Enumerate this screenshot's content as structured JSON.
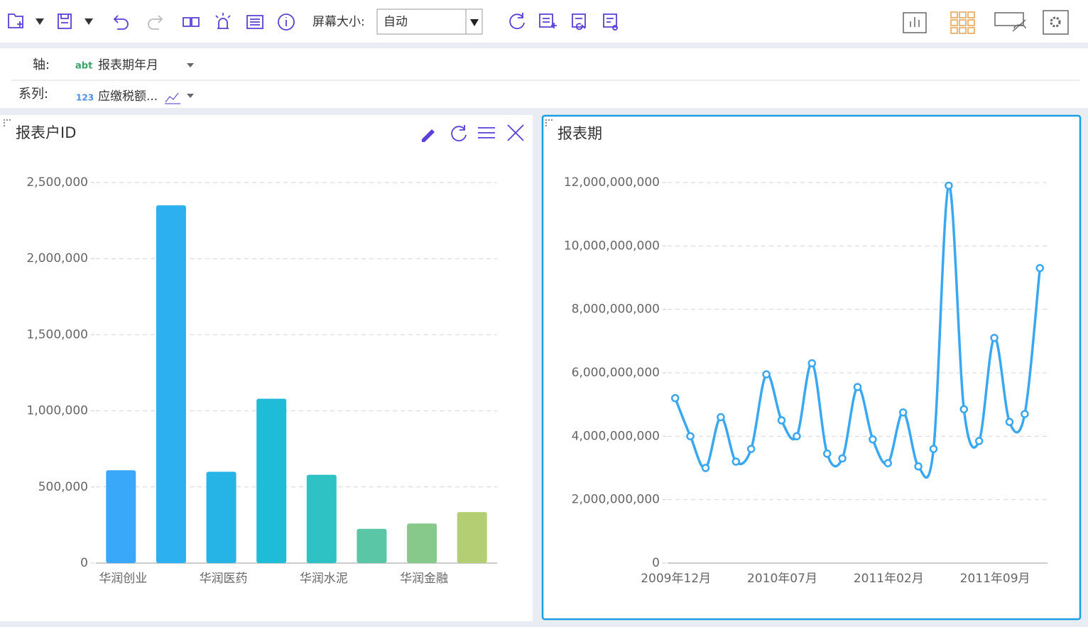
{
  "toolbar": {
    "screen_size_label": "屏幕大小:",
    "screen_size_value": "自动"
  },
  "fields": {
    "axis_label": "轴:",
    "axis_field": "报表期年月",
    "series_label": "系列:",
    "series_field": "应缴税额..."
  },
  "chart_data": [
    {
      "type": "bar",
      "title": "报表户ID",
      "categories": [
        "华润创业",
        null,
        "华润医药",
        null,
        "华润水泥",
        null,
        "华润金融",
        null
      ],
      "values": [
        610000,
        2350000,
        600000,
        1080000,
        580000,
        225000,
        260000,
        335000
      ],
      "colors": [
        "#3aa8f8",
        "#2cb0f0",
        "#26b4e6",
        "#1fbcd8",
        "#2ec2c4",
        "#5ac6a6",
        "#86c98b",
        "#b4cf73"
      ],
      "ylim": [
        0,
        2500000
      ],
      "yticks": [
        0,
        {
          "value": 500000,
          "label": "500,000"
        },
        {
          "value": 1000000,
          "label": "1,000,000"
        },
        {
          "value": 1500000,
          "label": "1,500,000"
        },
        {
          "value": 2000000,
          "label": "2,000,000"
        },
        {
          "value": 2500000,
          "label": "2,500,000"
        }
      ],
      "grid": true
    },
    {
      "type": "line",
      "title": "报表期",
      "categories": [
        "2009年12月",
        null,
        null,
        null,
        null,
        null,
        null,
        "2010年07月",
        null,
        null,
        null,
        null,
        null,
        null,
        "2011年02月",
        null,
        null,
        null,
        null,
        null,
        null,
        "2011年09月",
        null,
        null,
        null
      ],
      "values": [
        5200000000,
        4000000000,
        3000000000,
        4600000000,
        3200000000,
        3600000000,
        5950000000,
        4500000000,
        4000000000,
        6300000000,
        3450000000,
        3300000000,
        5550000000,
        3900000000,
        3150000000,
        4750000000,
        3050000000,
        3600000000,
        11900000000,
        4850000000,
        3850000000,
        7100000000,
        4450000000,
        4700000000,
        9300000000
      ],
      "color": "#3aa8f0",
      "ylim": [
        0,
        12000000000
      ],
      "yticks": [
        0,
        {
          "value": 2000000000,
          "label": "2,000,000,000"
        },
        {
          "value": 4000000000,
          "label": "4,000,000,000"
        },
        {
          "value": 6000000000,
          "label": "6,000,000,000"
        },
        {
          "value": 8000000000,
          "label": "8,000,000,000"
        },
        {
          "value": 10000000000,
          "label": "10,000,000,000"
        },
        {
          "value": 12000000000,
          "label": "12,000,000,000"
        }
      ],
      "grid": true
    }
  ]
}
